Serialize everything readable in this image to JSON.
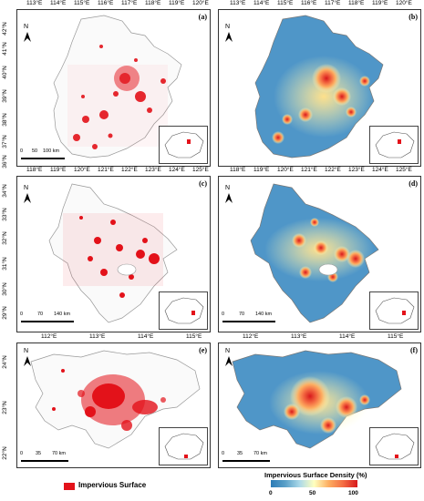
{
  "panels": {
    "a": {
      "label": "(a)",
      "xticks": [
        "113°E",
        "114°E",
        "115°E",
        "116°E",
        "117°E",
        "118°E",
        "119°E",
        "120°E"
      ],
      "yticks": [
        "42°N",
        "41°N",
        "40°N",
        "39°N",
        "38°N",
        "37°N",
        "36°N"
      ],
      "scale": [
        "0",
        "50",
        "100 km"
      ]
    },
    "b": {
      "label": "(b)",
      "xticks": [
        "113°E",
        "114°E",
        "115°E",
        "116°E",
        "117°E",
        "118°E",
        "119°E",
        "120°E"
      ]
    },
    "c": {
      "label": "(c)",
      "xticks": [
        "118°E",
        "119°E",
        "120°E",
        "121°E",
        "122°E",
        "123°E",
        "124°E",
        "125°E"
      ],
      "yticks": [
        "34°N",
        "33°N",
        "32°N",
        "31°N",
        "30°N",
        "29°N"
      ],
      "scale": [
        "0",
        "70",
        "140 km"
      ]
    },
    "d": {
      "label": "(d)",
      "scale": [
        "0",
        "70",
        "140 km"
      ]
    },
    "e": {
      "label": "(e)",
      "xticks": [
        "112°E",
        "113°E",
        "114°E",
        "115°E"
      ],
      "yticks": [
        "24°N",
        "23°N",
        "22°N"
      ],
      "scale": [
        "0",
        "35",
        "70 km"
      ]
    },
    "f": {
      "label": "(f)",
      "xticks": [
        "112°E",
        "113°E",
        "114°E",
        "115°E"
      ],
      "scale": [
        "0",
        "35",
        "70 km"
      ]
    }
  },
  "north_label": "N",
  "legend": {
    "impervious_label": "Impervious Surface",
    "impervious_color": "#e3121a"
  },
  "colorbar": {
    "title": "Impervious Surface Density (%)",
    "min": "0",
    "mid": "50",
    "max": "100",
    "colors": [
      "#2c7bb6",
      "#abd9e9",
      "#ffffbf",
      "#fdae61",
      "#d7191c"
    ]
  }
}
